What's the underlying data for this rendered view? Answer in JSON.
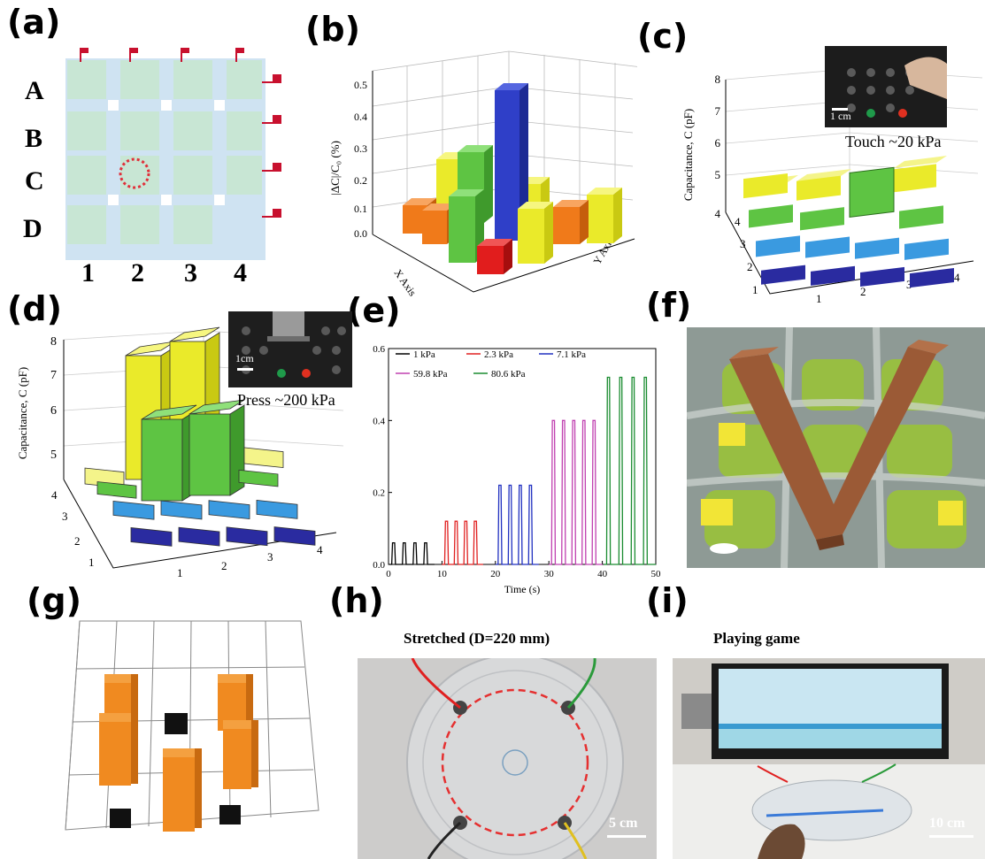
{
  "panels": {
    "a": "(a)",
    "b": "(b)",
    "c": "(c)",
    "d": "(d)",
    "e": "(e)",
    "f": "(f)",
    "g": "(g)",
    "h": "(h)",
    "i": "(i)"
  },
  "panel_a": {
    "rows": [
      "A",
      "B",
      "C",
      "D"
    ],
    "cols": [
      "1",
      "2",
      "3",
      "4"
    ],
    "colors": {
      "pad": "#c8e6d4",
      "gap": "#cfe3f2",
      "flag": "#c8102e",
      "marker": "#e0303a"
    }
  },
  "panel_b": {
    "ylabel": "|ΔC|/C₀ (%)",
    "y_ticks": [
      "0.5",
      "0.4",
      "0.3",
      "0.2",
      "0.1",
      "0.0"
    ],
    "x_axis_label": "X Axis",
    "y_axis_label": "Y Axis",
    "x_ticks": [
      "1",
      "2",
      "3",
      "4"
    ],
    "y_axis_ticks": [
      "1",
      "2",
      "3",
      "4"
    ]
  },
  "panel_c": {
    "ylabel": "Capacitance, C (pF)",
    "y_ticks": [
      "8",
      "7",
      "6",
      "5",
      "4"
    ],
    "row_ticks": [
      "4",
      "3",
      "2",
      "1"
    ],
    "col_ticks": [
      "1",
      "2",
      "3",
      "4"
    ],
    "inset_scale": "1 cm",
    "inset_caption": "Touch ~20 kPa"
  },
  "panel_d": {
    "ylabel": "Capacitance, C (pF)",
    "y_ticks": [
      "8",
      "7",
      "6",
      "5"
    ],
    "row_ticks": [
      "4",
      "3",
      "2",
      "1"
    ],
    "col_ticks": [
      "1",
      "2",
      "3",
      "4"
    ],
    "inset_scale": "1cm",
    "inset_caption": "Press ~200 kPa"
  },
  "chart_data": [
    {
      "type": "line",
      "panel": "e",
      "xlabel": "Time (s)",
      "ylabel": "",
      "xlim": [
        0,
        50
      ],
      "ylim": [
        0,
        0.6
      ],
      "x_ticks": [
        "0",
        "10",
        "20",
        "30",
        "40",
        "50"
      ],
      "y_ticks": [
        "0.0",
        "0.2",
        "0.4",
        "0.6"
      ],
      "legend_position": "top",
      "series": [
        {
          "name": "1 kPa",
          "color": "#000000",
          "start": 0.6,
          "period": 2.0,
          "peak": 0.06,
          "count": 4
        },
        {
          "name": "2.3 kPa",
          "color": "#e02020",
          "start": 10.5,
          "period": 1.8,
          "peak": 0.12,
          "count": 4
        },
        {
          "name": "7.1 kPa",
          "color": "#2030c0",
          "start": 20.5,
          "period": 1.9,
          "peak": 0.22,
          "count": 4
        },
        {
          "name": "59.8 kPa",
          "color": "#c040b0",
          "start": 30.5,
          "period": 1.9,
          "peak": 0.4,
          "count": 5
        },
        {
          "name": "80.6 kPa",
          "color": "#1a8c30",
          "start": 40.8,
          "period": 2.3,
          "peak": 0.52,
          "count": 4
        }
      ]
    }
  ],
  "panel_h": {
    "title": "Stretched (D=220 mm)",
    "scale": "5 cm"
  },
  "panel_i": {
    "title": "Playing game",
    "scale": "10 cm"
  }
}
